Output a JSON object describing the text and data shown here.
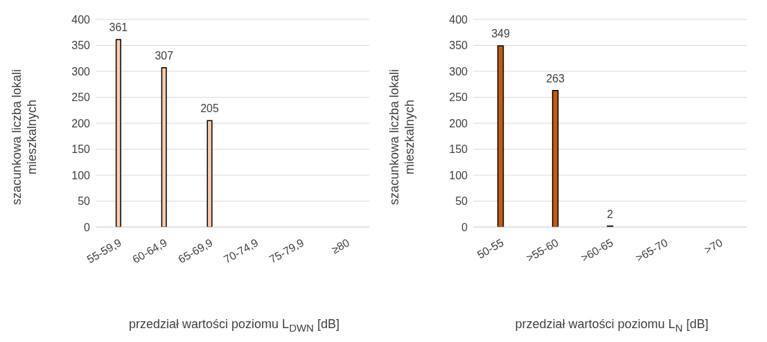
{
  "chart_data": [
    {
      "type": "bar",
      "categories": [
        "55-59,9",
        "60-64,9",
        "65-69,9",
        "70-74,9",
        "75-79,9",
        "≥80"
      ],
      "values": [
        361,
        307,
        205,
        0,
        0,
        0
      ],
      "value_labels": [
        "361",
        "307",
        "205",
        null,
        null,
        null
      ],
      "color": "#f8cbad",
      "ylim": [
        0,
        400
      ],
      "yticks": [
        0,
        50,
        100,
        150,
        200,
        250,
        300,
        350,
        400
      ],
      "grid": "y",
      "ylabel": "szacunkowa liczba lokali mieszkalnych",
      "xlabel": "przedział wartości poziomu L$_{DWN}$ [dB]"
    },
    {
      "type": "bar",
      "categories": [
        "50-55",
        ">55-60",
        ">60-65",
        ">65-70",
        ">70"
      ],
      "values": [
        349,
        263,
        2,
        0,
        0
      ],
      "value_labels": [
        "349",
        "263",
        "2",
        null,
        null
      ],
      "color": "#c55a11",
      "ylim": [
        0,
        400
      ],
      "yticks": [
        0,
        50,
        100,
        150,
        200,
        250,
        300,
        350,
        400
      ],
      "grid": "y",
      "ylabel": "szacunkowa liczba lokali mieszkalnych",
      "xlabel": "przedział wartości poziomu L$_{N}$ [dB]"
    }
  ]
}
